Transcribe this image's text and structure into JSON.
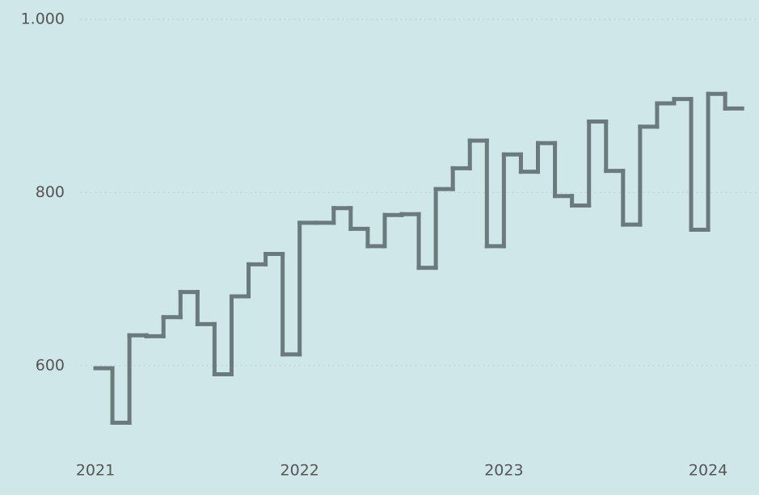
{
  "chart_data": {
    "type": "step",
    "x": [
      2021,
      2021.0833,
      2021.1667,
      2021.25,
      2021.3333,
      2021.4167,
      2021.5,
      2021.5833,
      2021.6667,
      2021.75,
      2021.8333,
      2021.9167,
      2022,
      2022.0833,
      2022.1667,
      2022.25,
      2022.3333,
      2022.4167,
      2022.5,
      2022.5833,
      2022.6667,
      2022.75,
      2022.8333,
      2022.9167,
      2023,
      2023.0833,
      2023.1667,
      2023.25,
      2023.3333,
      2023.4167,
      2023.5,
      2023.5833,
      2023.6667,
      2023.75,
      2023.8333,
      2023.9167,
      2024,
      2024.0833
    ],
    "series": [
      {
        "color": "#6b7a7d",
        "values": [
          597,
          534,
          635,
          634,
          656,
          685,
          648,
          590,
          680,
          717,
          729,
          613,
          765,
          765,
          782,
          758,
          738,
          774,
          775,
          713,
          804,
          828,
          860,
          738,
          844,
          824,
          857,
          796,
          785,
          882,
          825,
          763,
          876,
          903,
          908,
          757,
          914,
          897
        ]
      }
    ],
    "xlim": [
      2020.533,
      2024.249
    ],
    "xticks": [
      2021,
      2022,
      2023,
      2024
    ],
    "ylim": [
      500,
      1000
    ],
    "yticks": [
      600,
      800,
      {
        "value": 1000,
        "label": "1.000"
      }
    ],
    "grid": true
  }
}
